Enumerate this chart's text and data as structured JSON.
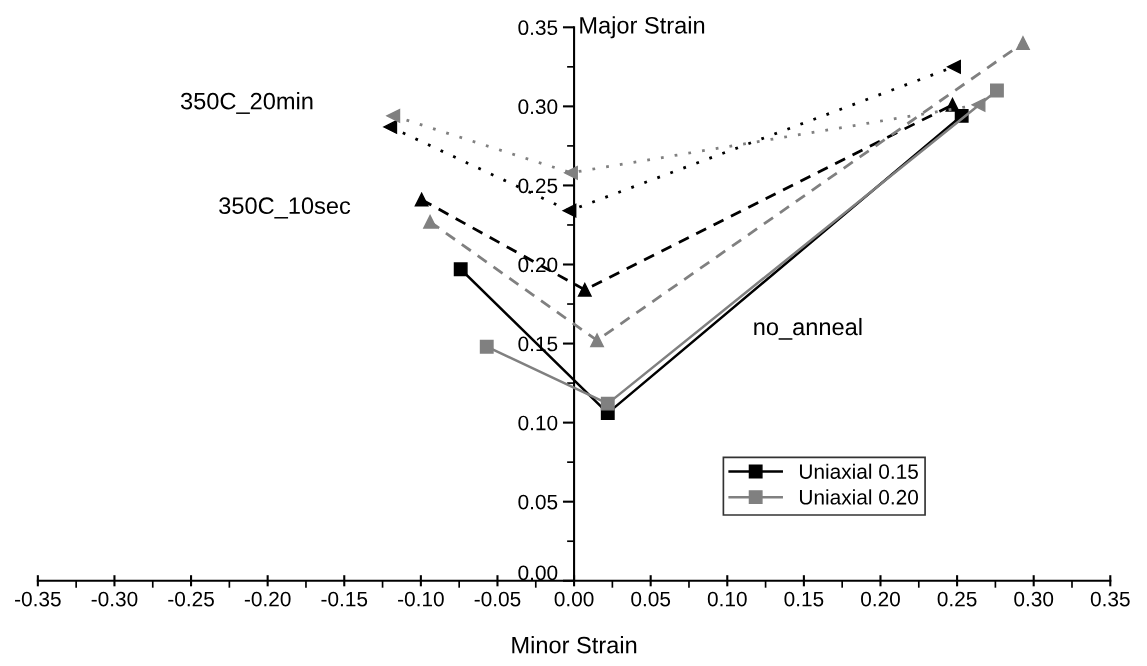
{
  "chart_data": {
    "type": "line",
    "xlabel": "Minor Strain",
    "ylabel": "Major Strain",
    "xlim": [
      -0.35,
      0.35
    ],
    "xticks": [
      {
        "value": -0.35,
        "label": "-0.35"
      },
      {
        "value": -0.3,
        "label": "-0.30"
      },
      {
        "value": -0.25,
        "label": "-0.25"
      },
      {
        "value": -0.2,
        "label": "-0.20"
      },
      {
        "value": -0.15,
        "label": "-0.15"
      },
      {
        "value": -0.1,
        "label": "-0.10"
      },
      {
        "value": -0.05,
        "label": "-0.05"
      },
      {
        "value": 0,
        "label": "0.00"
      },
      {
        "value": 0.05,
        "label": "0.05"
      },
      {
        "value": 0.1,
        "label": "0.10"
      },
      {
        "value": 0.15,
        "label": "0.15"
      },
      {
        "value": 0.2,
        "label": "0.20"
      },
      {
        "value": 0.25,
        "label": "0.25"
      },
      {
        "value": 0.3,
        "label": "0.30"
      },
      {
        "value": 0.35,
        "label": "0.35"
      }
    ],
    "ylim": [
      0,
      0.35
    ],
    "yticks": [
      {
        "value": 0,
        "label": "0.00"
      },
      {
        "value": 0.05,
        "label": "0.05"
      },
      {
        "value": 0.1,
        "label": "0.10"
      },
      {
        "value": 0.15,
        "label": "0.15"
      },
      {
        "value": 0.2,
        "label": "0.20"
      },
      {
        "value": 0.25,
        "label": "0.25"
      },
      {
        "value": 0.3,
        "label": "0.30"
      },
      {
        "value": 0.35,
        "label": "0.35"
      }
    ],
    "grid": false,
    "legend": "bottom right",
    "series": [
      {
        "name": "Uniaxial 0.15",
        "color": "#000000",
        "marker": "square",
        "line_style": "solid",
        "x": [
          -0.074,
          0.022,
          0.253
        ],
        "values": [
          0.197,
          0.106,
          0.294
        ]
      },
      {
        "name": "Uniaxial 0.20",
        "color": "#808080",
        "marker": "square",
        "line_style": "solid",
        "x": [
          -0.057,
          0.022,
          0.276
        ],
        "values": [
          0.148,
          0.112,
          0.31
        ]
      },
      {
        "color": "#000000",
        "marker": "triangle",
        "line_style": "dashed",
        "x": [
          -0.0995,
          0.007,
          0.247
        ],
        "values": [
          0.241,
          0.184,
          0.301
        ]
      },
      {
        "color": "#808080",
        "marker": "triangle",
        "line_style": "dashed",
        "x": [
          -0.094,
          0.015,
          0.293
        ],
        "values": [
          0.227,
          0.152,
          0.34
        ]
      },
      {
        "color": "#000000",
        "marker": "triangle-left",
        "line_style": "dotted",
        "x": [
          -0.12,
          -0.003,
          0.248
        ],
        "values": [
          0.287,
          0.234,
          0.325
        ]
      },
      {
        "color": "#808080",
        "marker": "triangle-left",
        "line_style": "dotted",
        "x": [
          -0.118,
          -0.002,
          0.264
        ],
        "values": [
          0.294,
          0.258,
          0.301
        ]
      }
    ],
    "annotations": [
      "350C_20min",
      "350C_10sec",
      "no_anneal"
    ]
  }
}
